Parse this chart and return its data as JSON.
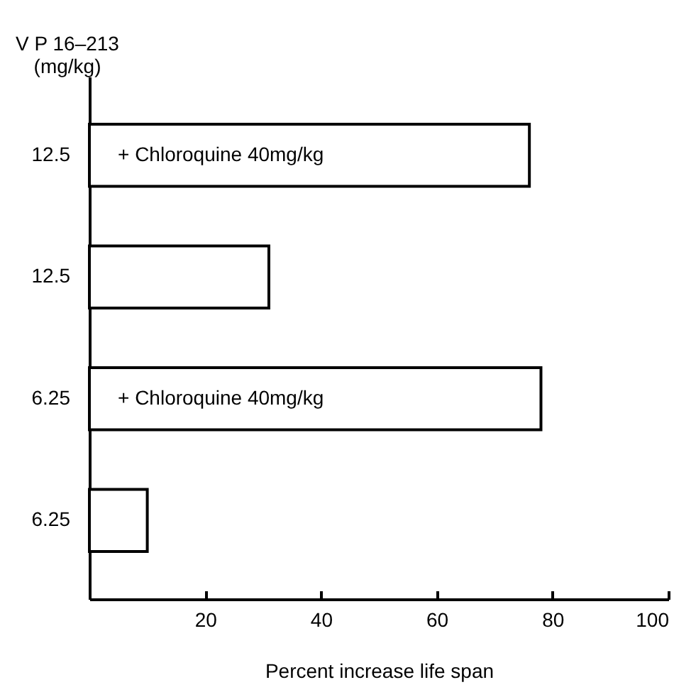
{
  "chart_data": {
    "type": "bar",
    "orientation": "horizontal",
    "ylabel": "V P 16–213\n(mg/kg)",
    "xlabel": "Percent increase life span",
    "categories": [
      "12.5",
      "12.5",
      "6.25",
      "6.25"
    ],
    "values": [
      76,
      31,
      78,
      10
    ],
    "color": "#ffffff",
    "xlim": [
      0,
      100
    ],
    "xticks": [
      20,
      40,
      60,
      80,
      100
    ],
    "annotations": [
      "+ Chloroquine 40mg/kg",
      "+ Chloroquine 40mg/kg"
    ]
  }
}
